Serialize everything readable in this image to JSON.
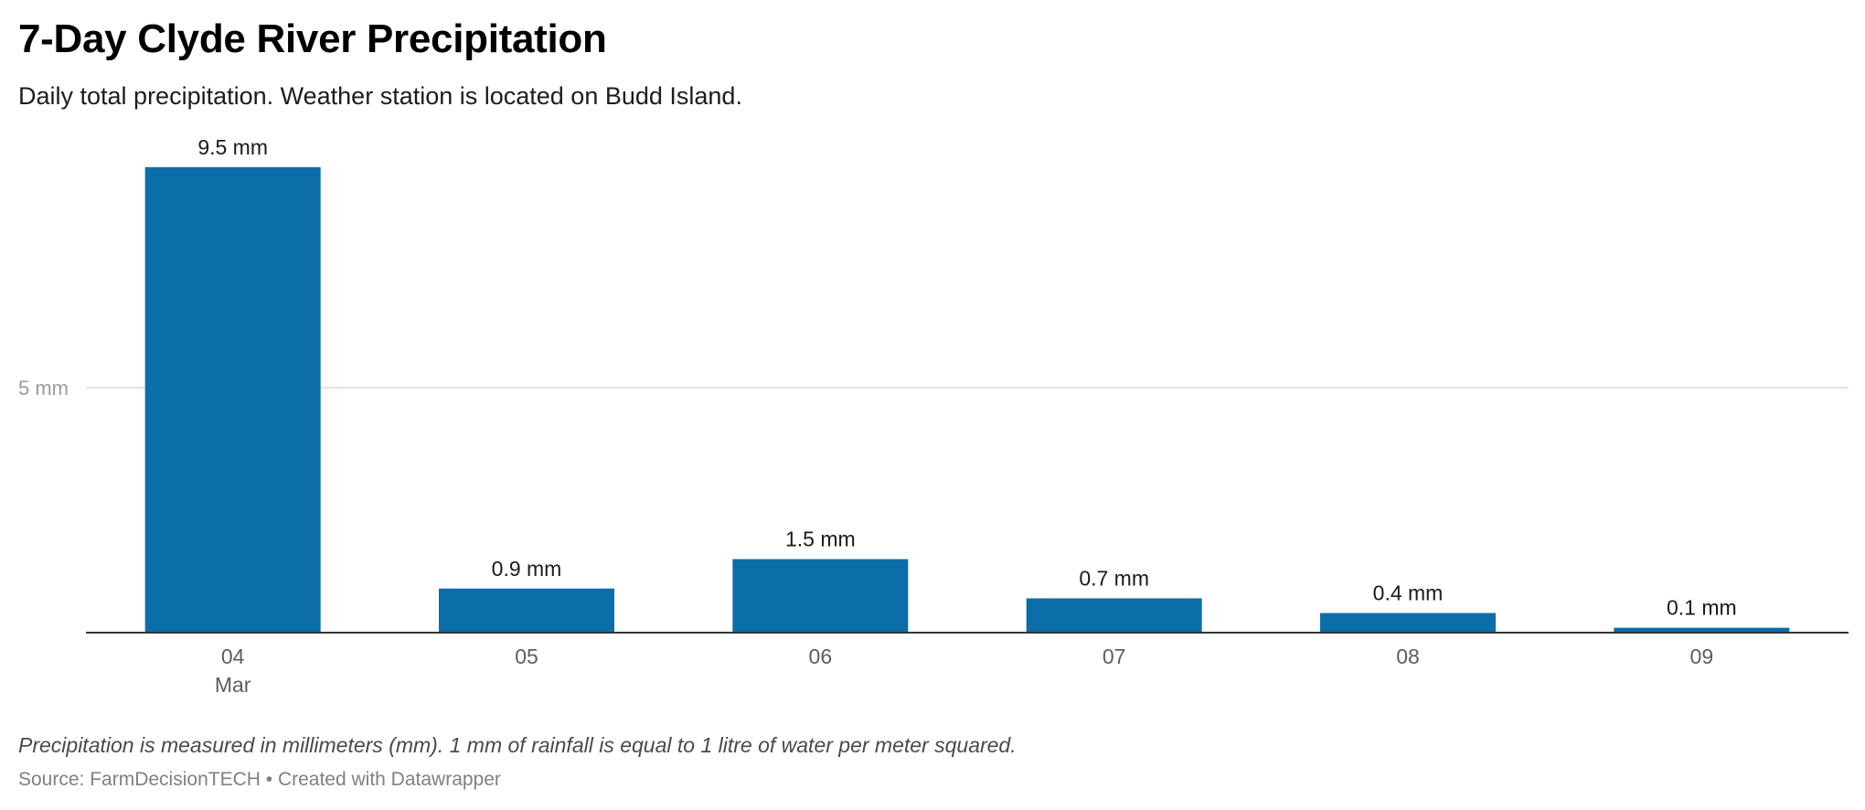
{
  "header": {
    "title": "7-Day Clyde River Precipitation",
    "subtitle": "Daily total precipitation. Weather station is located on Budd Island."
  },
  "footer": {
    "notes": "Precipitation is measured in millimeters (mm). 1 mm of rainfall is equal to 1 litre of water per meter squared.",
    "source_prefix": "Source: ",
    "source_name": "FarmDecisionTECH",
    "separator": " • ",
    "credit": "Created with Datawrapper"
  },
  "colors": {
    "bar": "#0b6ea9",
    "gridline": "#e4e4e4",
    "axis": "#333333",
    "tick_label": "#5e5e5e",
    "y_tick_label": "#9c9c9c",
    "value_label": "#1a1a1a"
  },
  "chart_data": {
    "type": "bar",
    "title": "7-Day Clyde River Precipitation",
    "subtitle": "Daily total precipitation. Weather station is located on Budd Island.",
    "categories": [
      "04",
      "05",
      "06",
      "07",
      "08",
      "09"
    ],
    "category_sublabels": [
      "Mar",
      "",
      "",
      "",
      "",
      ""
    ],
    "values": [
      9.5,
      0.9,
      1.5,
      0.7,
      0.4,
      0.1
    ],
    "value_labels": [
      "9.5 mm",
      "0.9 mm",
      "1.5 mm",
      "0.7 mm",
      "0.4 mm",
      "0.1 mm"
    ],
    "unit": "mm",
    "y_ticks": [
      {
        "value": 5,
        "label": "5 mm"
      }
    ],
    "ylim": [
      0,
      10
    ],
    "grid": true,
    "legend": "none"
  }
}
